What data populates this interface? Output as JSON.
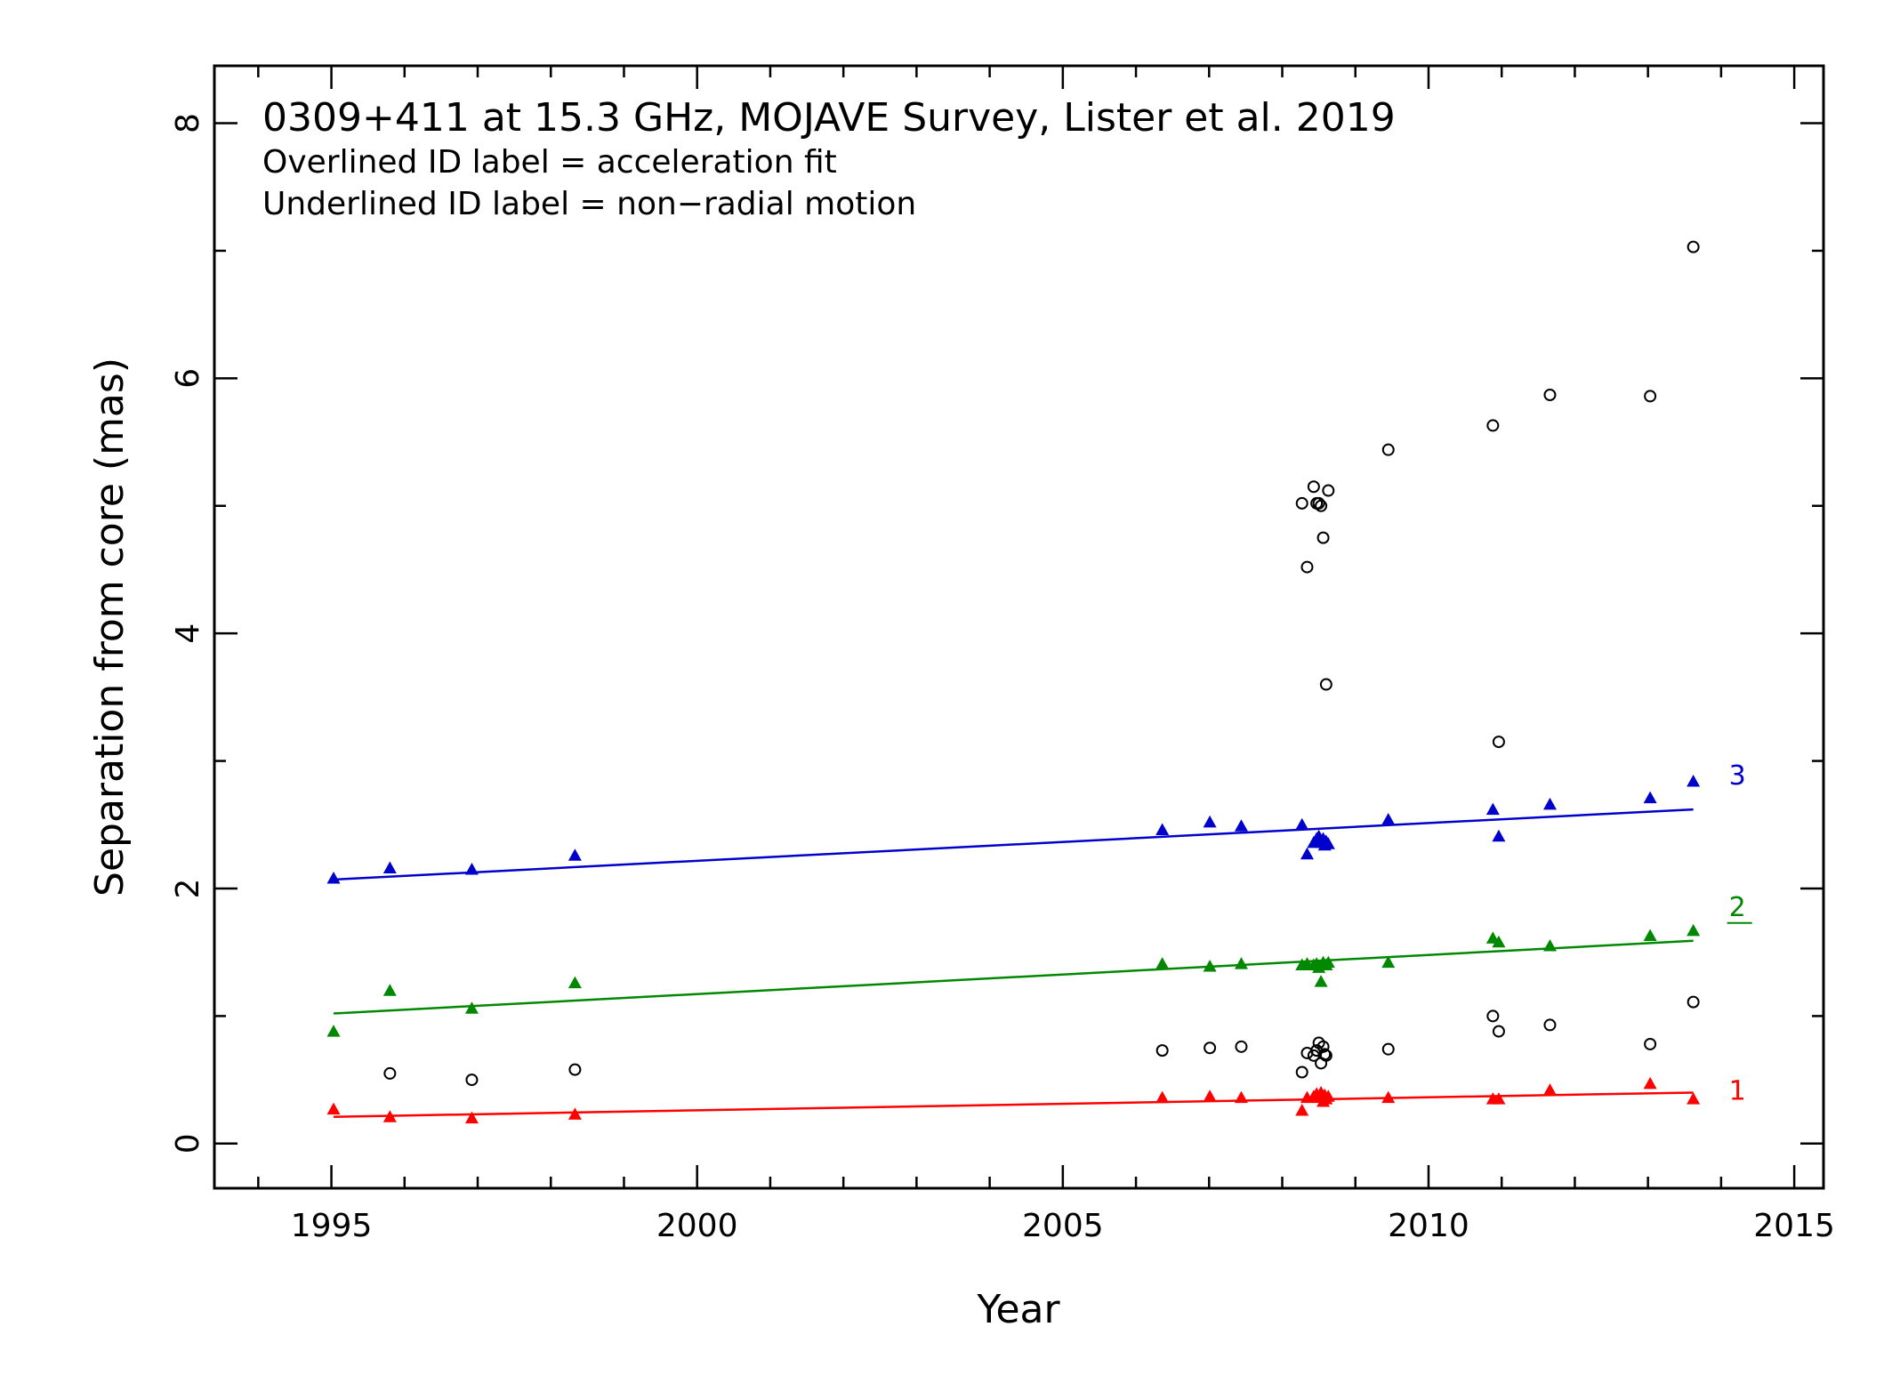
{
  "chart_data": {
    "type": "scatter",
    "title": "0309+411 at 15.3 GHz, MOJAVE Survey, Lister et al. 2019",
    "notes": [
      "Overlined ID label = acceleration fit",
      "Underlined ID label = non−radial motion"
    ],
    "xlabel": "Year",
    "ylabel": "Separation from core (mas)",
    "xlim": [
      1993.4,
      2015.4
    ],
    "ylim": [
      -0.35,
      8.45
    ],
    "xticks": [
      1995,
      2000,
      2005,
      2010,
      2015
    ],
    "xtick_labels": [
      "1995",
      "2000",
      "2005",
      "2010",
      "2015"
    ],
    "yticks": [
      0,
      2,
      4,
      6,
      8
    ],
    "ytick_labels": [
      "0",
      "2",
      "4",
      "6",
      "8"
    ],
    "grid": false,
    "series": [
      {
        "name": "1",
        "label_style": "plain",
        "color": "#ff0000",
        "marker": "triangle",
        "x": [
          1995.03,
          1995.8,
          1996.92,
          1998.33,
          2006.36,
          2007.01,
          2007.44,
          2008.27,
          2008.34,
          2008.43,
          2008.47,
          2008.5,
          2008.53,
          2008.56,
          2008.58,
          2008.6,
          2008.63,
          2009.45,
          2010.88,
          2010.96,
          2011.66,
          2013.03,
          2013.62
        ],
        "y": [
          0.27,
          0.21,
          0.2,
          0.23,
          0.36,
          0.37,
          0.36,
          0.26,
          0.36,
          0.37,
          0.39,
          0.36,
          0.4,
          0.33,
          0.38,
          0.35,
          0.37,
          0.36,
          0.35,
          0.35,
          0.42,
          0.47,
          0.35
        ],
        "fit": {
          "x": [
            1995.03,
            2013.62
          ],
          "y": [
            0.21,
            0.4
          ]
        }
      },
      {
        "name": "2",
        "label_style": "underlined",
        "color": "#008800",
        "marker": "triangle",
        "x": [
          1995.03,
          1995.8,
          1996.92,
          1998.33,
          2006.36,
          2007.01,
          2007.44,
          2008.27,
          2008.34,
          2008.43,
          2008.47,
          2008.5,
          2008.53,
          2008.56,
          2008.6,
          2008.63,
          2009.45,
          2010.88,
          2010.96,
          2011.66,
          2013.03,
          2013.62
        ],
        "y": [
          0.88,
          1.2,
          1.06,
          1.26,
          1.41,
          1.39,
          1.41,
          1.4,
          1.41,
          1.4,
          1.41,
          1.38,
          1.27,
          1.42,
          1.4,
          1.42,
          1.42,
          1.61,
          1.58,
          1.55,
          1.63,
          1.67
        ],
        "fit": {
          "x": [
            1995.03,
            2013.62
          ],
          "y": [
            1.02,
            1.59
          ]
        }
      },
      {
        "name": "3",
        "label_style": "plain",
        "color": "#0000cc",
        "marker": "triangle",
        "x": [
          1995.03,
          1995.8,
          1996.92,
          1998.33,
          2006.36,
          2007.01,
          2007.44,
          2008.27,
          2008.34,
          2008.43,
          2008.47,
          2008.5,
          2008.53,
          2008.56,
          2008.58,
          2008.6,
          2008.63,
          2009.45,
          2010.88,
          2010.96,
          2011.66,
          2013.03,
          2013.62
        ],
        "y": [
          2.08,
          2.16,
          2.15,
          2.26,
          2.46,
          2.52,
          2.49,
          2.5,
          2.27,
          2.36,
          2.39,
          2.41,
          2.36,
          2.39,
          2.34,
          2.37,
          2.35,
          2.54,
          2.62,
          2.41,
          2.66,
          2.71,
          2.84
        ],
        "fit": {
          "x": [
            1995.03,
            2013.62
          ],
          "y": [
            2.07,
            2.62
          ]
        }
      },
      {
        "label_style": "none",
        "color": "#000000",
        "marker": "circle",
        "x": [
          1995.8,
          1996.92,
          1998.33,
          2006.36,
          2007.01,
          2007.44,
          2008.27,
          2008.34,
          2008.43,
          2008.47,
          2008.5,
          2008.53,
          2008.56,
          2008.58,
          2008.6,
          2009.45,
          2010.88,
          2010.96,
          2011.66,
          2013.03,
          2013.62,
          2008.27,
          2008.34,
          2008.43,
          2008.47,
          2008.5,
          2008.53,
          2008.56,
          2008.6,
          2008.63,
          2009.45,
          2010.88,
          2010.96,
          2011.66,
          2013.03,
          2013.62
        ],
        "y": [
          0.55,
          0.5,
          0.58,
          0.73,
          0.75,
          0.76,
          0.56,
          0.71,
          0.69,
          0.73,
          0.79,
          0.63,
          0.76,
          0.7,
          0.69,
          0.74,
          1.0,
          0.88,
          0.93,
          0.78,
          1.11,
          5.02,
          4.52,
          5.15,
          5.02,
          5.02,
          5.0,
          4.75,
          3.6,
          5.12,
          5.44,
          5.63,
          3.15,
          5.87,
          5.86,
          7.03
        ]
      }
    ]
  }
}
